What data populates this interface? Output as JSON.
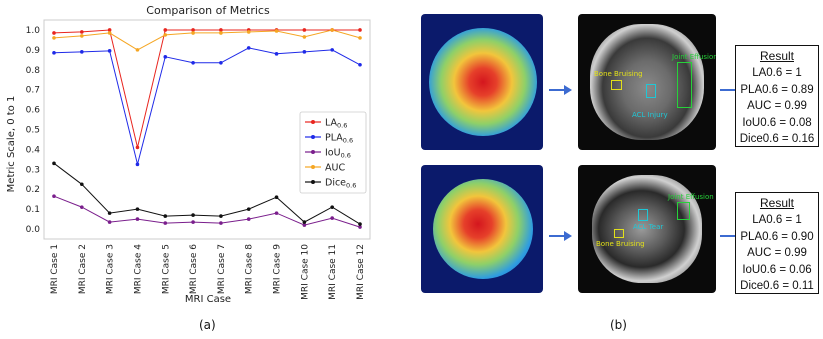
{
  "chart_data": {
    "type": "line",
    "title": "Comparison of Metrics",
    "xlabel": "MRI Case",
    "ylabel": "Metric Scale, 0 to 1",
    "ylim": [
      -0.05,
      1.05
    ],
    "yticks": [
      "0.0",
      "0.1",
      "0.2",
      "0.3",
      "0.4",
      "0.5",
      "0.6",
      "0.7",
      "0.8",
      "0.9",
      "1.0"
    ],
    "categories": [
      "MRI Case 1",
      "MRI Case 2",
      "MRI Case 3",
      "MRI Case 4",
      "MRI Case 5",
      "MRI Case 6",
      "MRI Case 7",
      "MRI Case 8",
      "MRI Case 9",
      "MRI Case 10",
      "MRI Case 11",
      "MRI Case 12"
    ],
    "legend_position": "center-right",
    "grid": true,
    "series": [
      {
        "name": "LA",
        "sub": "0.6",
        "color": "#e8251f",
        "values": [
          0.985,
          0.99,
          1.0,
          0.41,
          1.0,
          1.0,
          1.0,
          1.0,
          1.0,
          1.0,
          1.0,
          1.0
        ]
      },
      {
        "name": "PLA",
        "sub": "0.6",
        "color": "#1f2ae8",
        "values": [
          0.885,
          0.89,
          0.895,
          0.325,
          0.865,
          0.835,
          0.835,
          0.91,
          0.88,
          0.89,
          0.9,
          0.825
        ]
      },
      {
        "name": "IoU",
        "sub": "0.6",
        "color": "#7a1e8c",
        "values": [
          0.165,
          0.11,
          0.035,
          0.05,
          0.03,
          0.035,
          0.03,
          0.05,
          0.08,
          0.02,
          0.055,
          0.01
        ]
      },
      {
        "name": "AUC",
        "sub": "",
        "color": "#f5a623",
        "values": [
          0.96,
          0.97,
          0.985,
          0.9,
          0.975,
          0.985,
          0.985,
          0.99,
          0.995,
          0.965,
          1.0,
          0.96
        ]
      },
      {
        "name": "Dice",
        "sub": "0.6",
        "color": "#111111",
        "values": [
          0.33,
          0.225,
          0.08,
          0.1,
          0.065,
          0.07,
          0.065,
          0.1,
          0.16,
          0.035,
          0.11,
          0.025
        ]
      }
    ]
  },
  "labels": {
    "a": "(a)",
    "b": "(b)"
  },
  "images": {
    "top_overlay": {
      "labels": [
        "Bone Bruising",
        "Joint Effusion",
        "ACL Injury"
      ]
    },
    "bottom_overlay": {
      "labels": [
        "Joint Effusion",
        "ACL Tear",
        "Bone Bruising"
      ]
    }
  },
  "results": [
    {
      "title": "Result",
      "lines": [
        "LA0.6 = 1",
        "PLA0.6 = 0.89",
        "AUC = 0.99",
        "IoU0.6 = 0.08",
        "Dice0.6 = 0.16"
      ]
    },
    {
      "title": "Result",
      "lines": [
        "LA0.6 = 1",
        "PLA0.6 = 0.90",
        "AUC = 0.99",
        "IoU0.6 = 0.06",
        "Dice0.6 = 0.11"
      ]
    }
  ]
}
